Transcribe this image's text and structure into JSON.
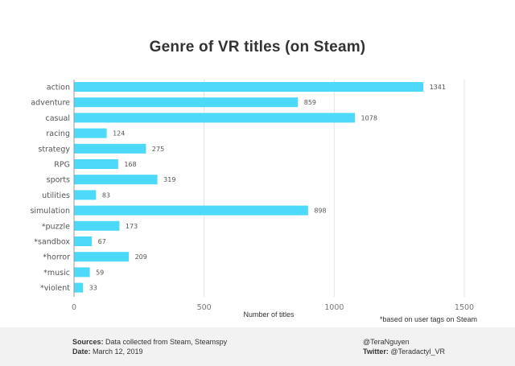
{
  "chart_data": {
    "type": "bar",
    "orientation": "horizontal",
    "title": "Genre of VR titles (on Steam)",
    "xlabel": "Number of titles",
    "ylabel": "",
    "xlim": [
      0,
      1500
    ],
    "xticks": [
      0,
      500,
      1000,
      1500
    ],
    "xtick_labels": [
      "0",
      "500",
      "1000",
      "1500"
    ],
    "grid": "vertical",
    "bar_color": "#4dd9fa",
    "categories": [
      "action",
      "adventure",
      "casual",
      "racing",
      "strategy",
      "RPG",
      "sports",
      "utilities",
      "simulation",
      "*puzzle",
      "*sandbox",
      "*horror",
      "*music",
      "*violent"
    ],
    "values": [
      1341,
      859,
      1078,
      124,
      275,
      168,
      319,
      83,
      898,
      173,
      67,
      209,
      59,
      33
    ],
    "value_labels": [
      "1341",
      "859",
      "1078",
      "124",
      "275",
      "168",
      "319",
      "83",
      "898",
      "173",
      "67",
      "209",
      "59",
      "33"
    ],
    "annotation": "*based on user tags on Steam"
  },
  "footer": {
    "sources_label": "Sources:",
    "sources_text": " Data collected from Steam, Steamspy",
    "date_label": "Date:",
    "date_text": " March 12, 2019",
    "author": "@TeraNguyen",
    "twitter_label": "Twitter:",
    "twitter_text": " @Teradactyl_VR"
  }
}
